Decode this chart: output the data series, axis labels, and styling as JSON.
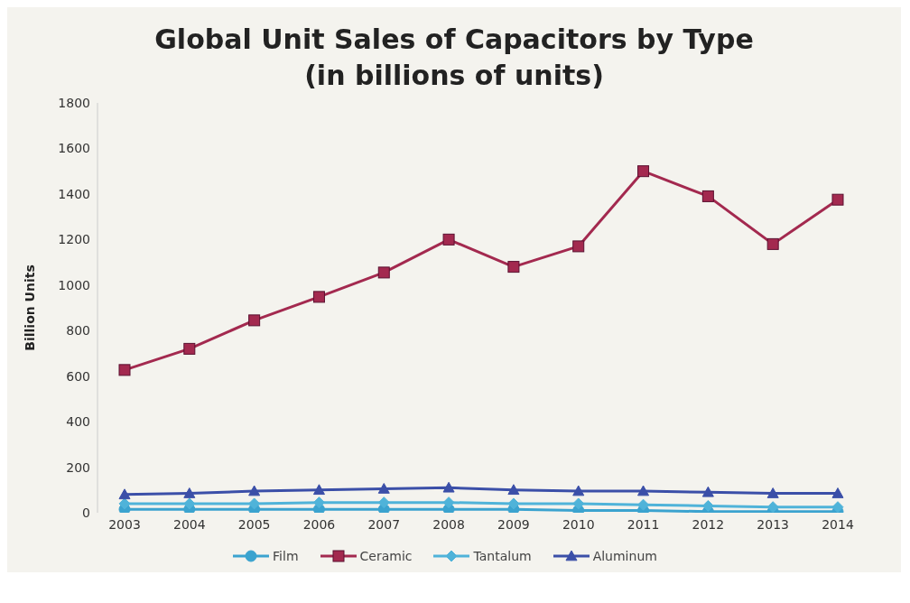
{
  "chart_data": {
    "type": "line",
    "title": "Global Unit Sales of Capacitors by Type (in billions of units)",
    "ylabel": "Billion Units",
    "categories": [
      "2003",
      "2004",
      "2005",
      "2006",
      "2007",
      "2008",
      "2009",
      "2010",
      "2011",
      "2012",
      "2013",
      "2014"
    ],
    "series": [
      {
        "name": "Film",
        "color": "#3ba3cf",
        "marker": "circle",
        "values": [
          15,
          15,
          15,
          15,
          15,
          15,
          15,
          10,
          10,
          5,
          5,
          5
        ]
      },
      {
        "name": "Ceramic",
        "color": "#a3294f",
        "marker": "square",
        "values": [
          627,
          720,
          845,
          948,
          1055,
          1200,
          1080,
          1170,
          1500,
          1390,
          1180,
          1375
        ]
      },
      {
        "name": "Tantalum",
        "color": "#4fb3d9",
        "marker": "diamond",
        "values": [
          40,
          40,
          40,
          45,
          45,
          45,
          40,
          40,
          35,
          30,
          25,
          25
        ]
      },
      {
        "name": "Aluminum",
        "color": "#3b4fa8",
        "marker": "triangle",
        "values": [
          80,
          85,
          95,
          100,
          105,
          110,
          100,
          95,
          95,
          90,
          85,
          85
        ]
      }
    ],
    "ylim": [
      0,
      1800
    ],
    "yticks": [
      0,
      200,
      400,
      600,
      800,
      1000,
      1200,
      1400,
      1600,
      1800
    ],
    "grid": false,
    "legend": "bottom",
    "line_style": "solid"
  }
}
